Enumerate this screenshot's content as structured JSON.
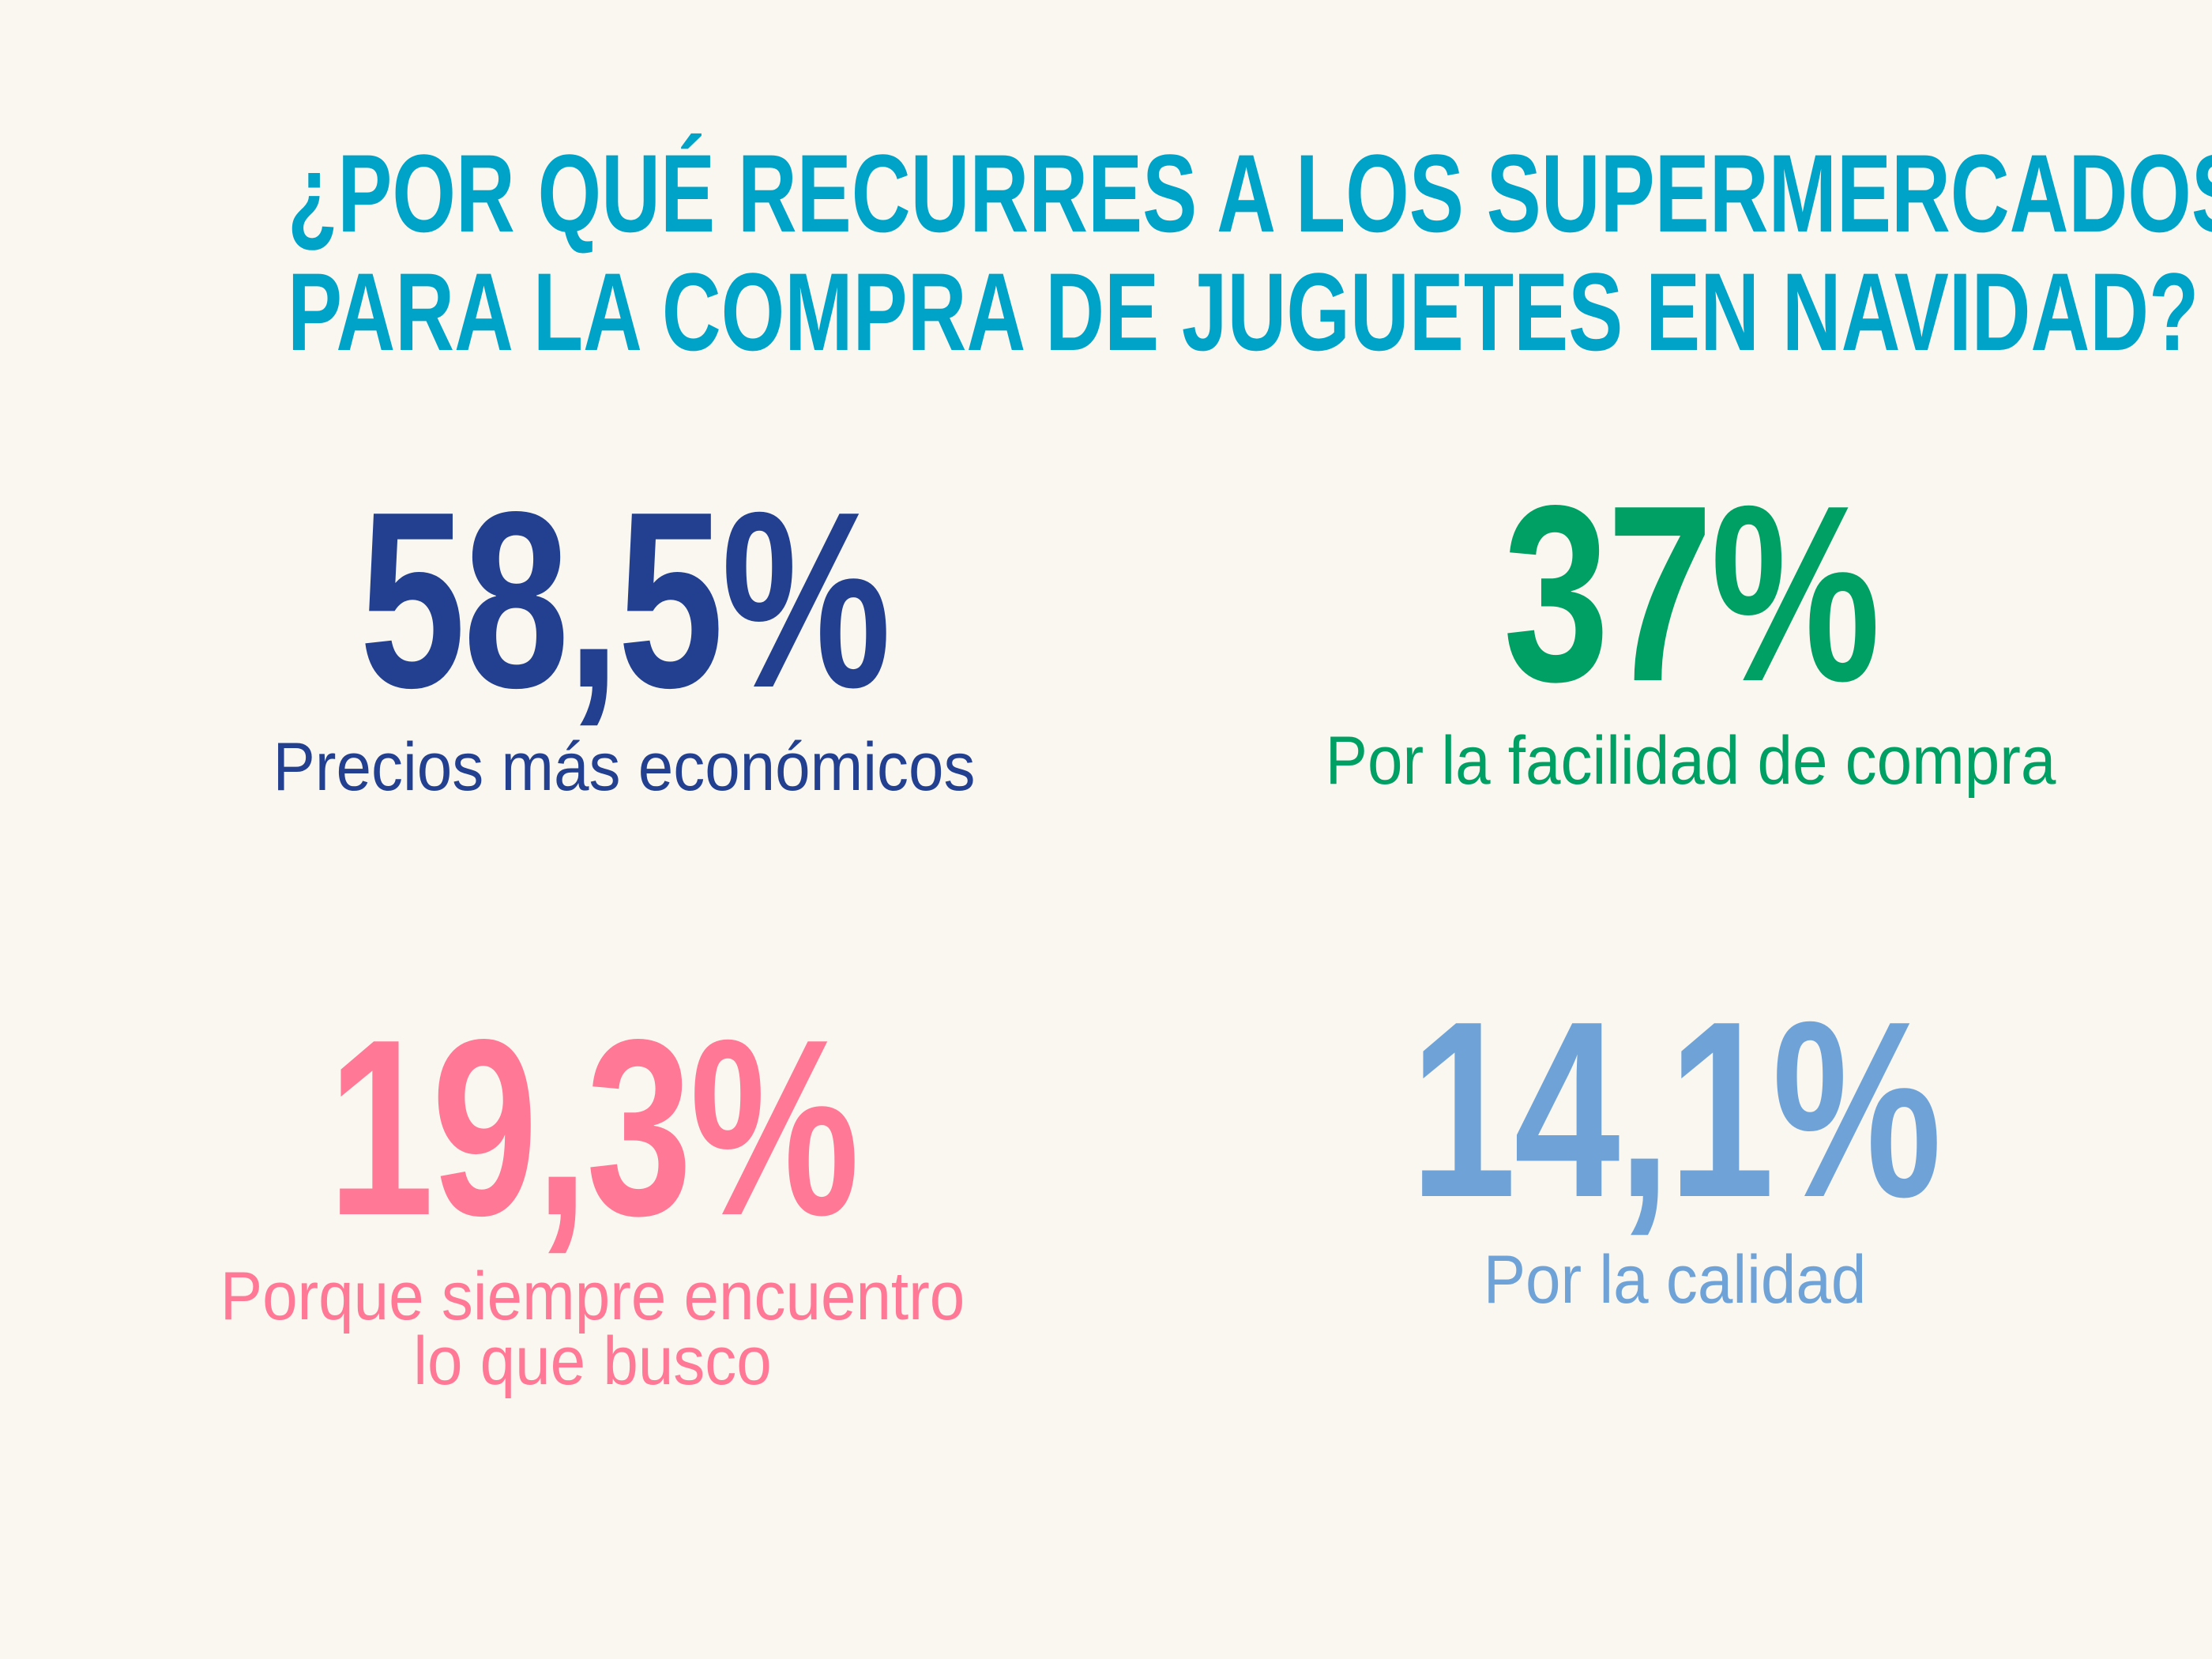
{
  "title": {
    "line1": "¿POR QUÉ RECURRES A LOS SUPERMERCADOS",
    "line2": "PARA LA COMPRA DE JUGUETES EN NAVIDAD?"
  },
  "stats": [
    {
      "value": "58,5%",
      "label_lines": [
        "Precios más económicos"
      ],
      "color": "#22408f"
    },
    {
      "value": "37%",
      "label_lines": [
        "Por la facilidad de compra"
      ],
      "color": "#00a065"
    },
    {
      "value": "19,3%",
      "label_lines": [
        "Porque siempre encuentro",
        "lo que busco"
      ],
      "color": "#ff7896"
    },
    {
      "value": "14,1%",
      "label_lines": [
        "Por la calidad"
      ],
      "color": "#6fa3d8"
    }
  ],
  "colors": {
    "title": "#00a3c8",
    "background": "#f9f7ef"
  }
}
